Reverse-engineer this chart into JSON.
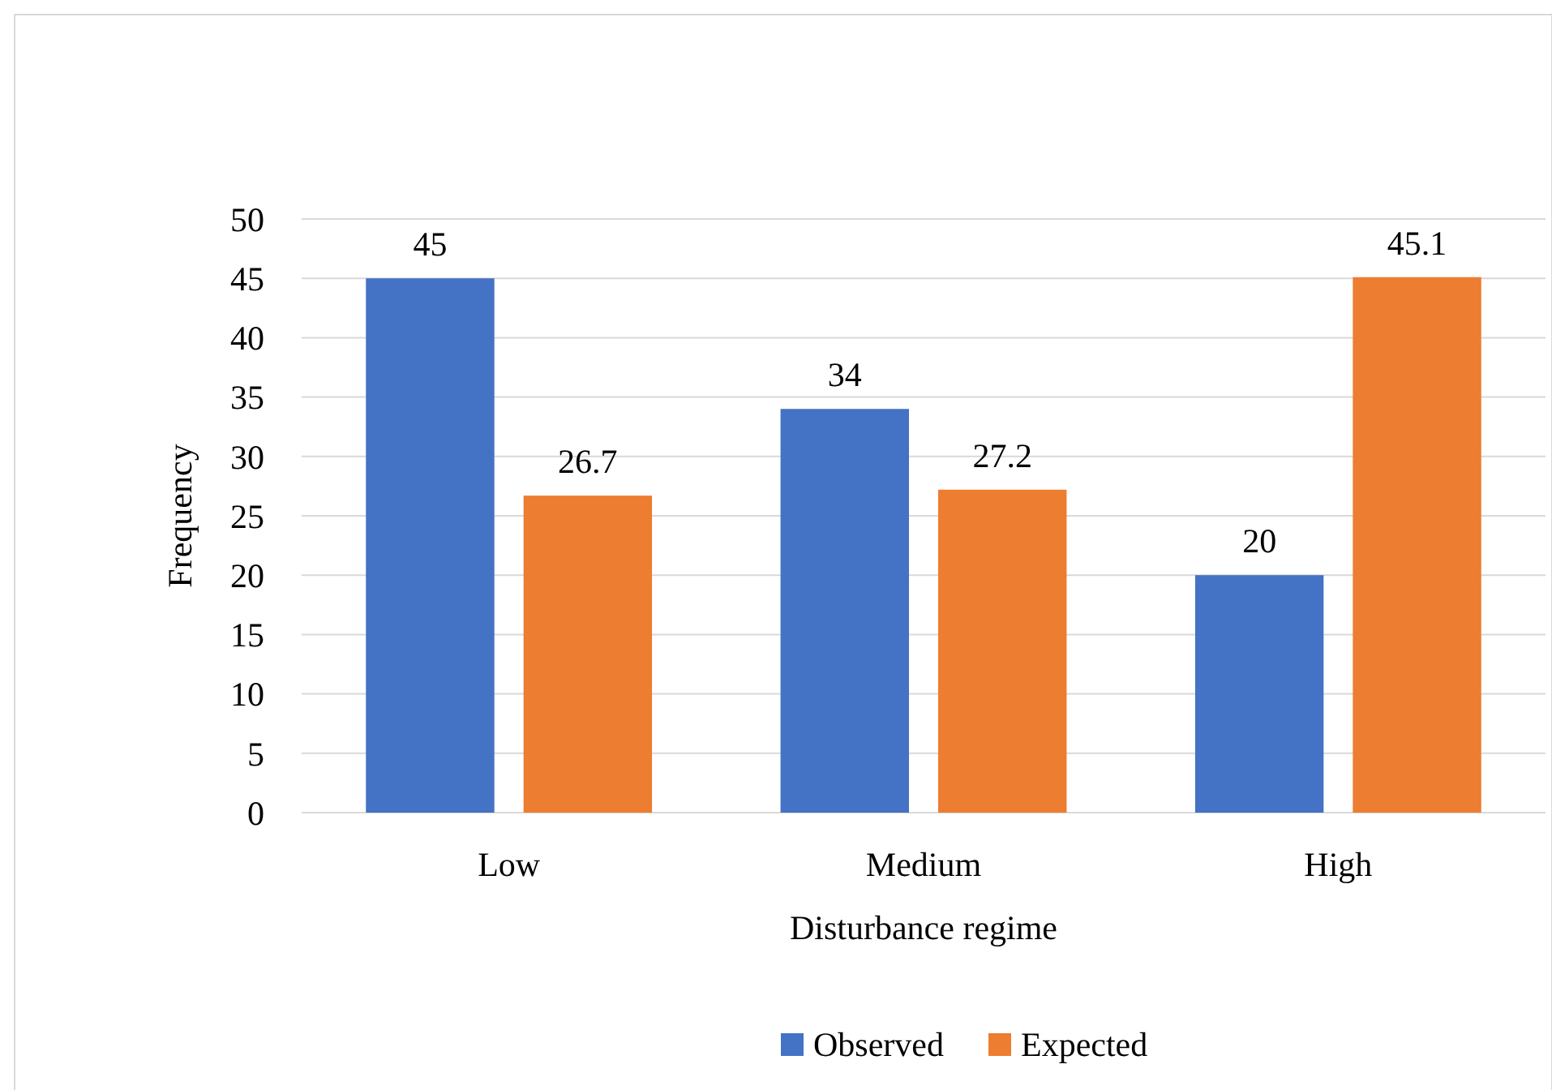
{
  "chart_data": {
    "type": "bar",
    "xlabel": "Disturbance regime",
    "ylabel": "Frequency",
    "categories": [
      "Low",
      "Medium",
      "High"
    ],
    "series": [
      {
        "name": "Observed",
        "color": "#4472c4",
        "values": [
          45,
          34,
          20
        ]
      },
      {
        "name": "Expected",
        "color": "#ed7d31",
        "values": [
          26.7,
          27.2,
          45.1
        ]
      }
    ],
    "ylim": [
      0,
      50
    ],
    "yticks": [
      0,
      5,
      10,
      15,
      20,
      25,
      30,
      35,
      40,
      45,
      50
    ],
    "grid": "y",
    "legend": "bottom",
    "data_labels": true
  }
}
